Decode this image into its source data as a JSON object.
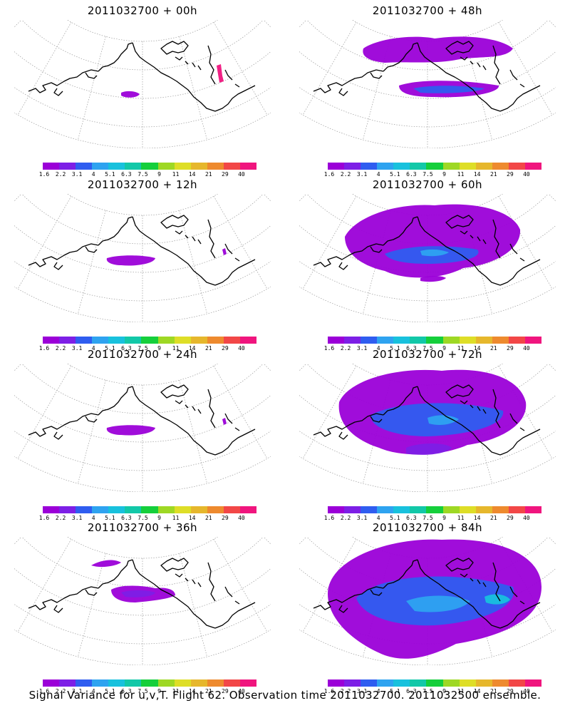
{
  "panels": [
    {
      "title": "2011032700 + 00h",
      "level": 0
    },
    {
      "title": "2011032700 + 48h",
      "level": 3
    },
    {
      "title": "2011032700 + 12h",
      "level": 1
    },
    {
      "title": "2011032700 + 60h",
      "level": 4
    },
    {
      "title": "2011032700 + 24h",
      "level": 1
    },
    {
      "title": "2011032700 + 72h",
      "level": 5
    },
    {
      "title": "2011032700 + 36h",
      "level": 2
    },
    {
      "title": "2011032700 + 84h",
      "level": 6
    }
  ],
  "colorbar": {
    "labels": [
      "1.6",
      "2.2",
      "3.1",
      "4",
      "5.1",
      "6.3",
      "7.5",
      "9",
      "11",
      "14",
      "21",
      "29",
      "40"
    ],
    "colors": [
      "#9b00d8",
      "#7d1fe6",
      "#2f5df0",
      "#2ea3f0",
      "#18c1dd",
      "#12c8a8",
      "#15cf3b",
      "#9ed824",
      "#dede27",
      "#e6b72c",
      "#ee8a2e",
      "#f24747",
      "#f0157e"
    ]
  },
  "caption": "Signal Variance for u,v,T. Flight 62. Observation time 2011032700. 2011032500 ensemble."
}
